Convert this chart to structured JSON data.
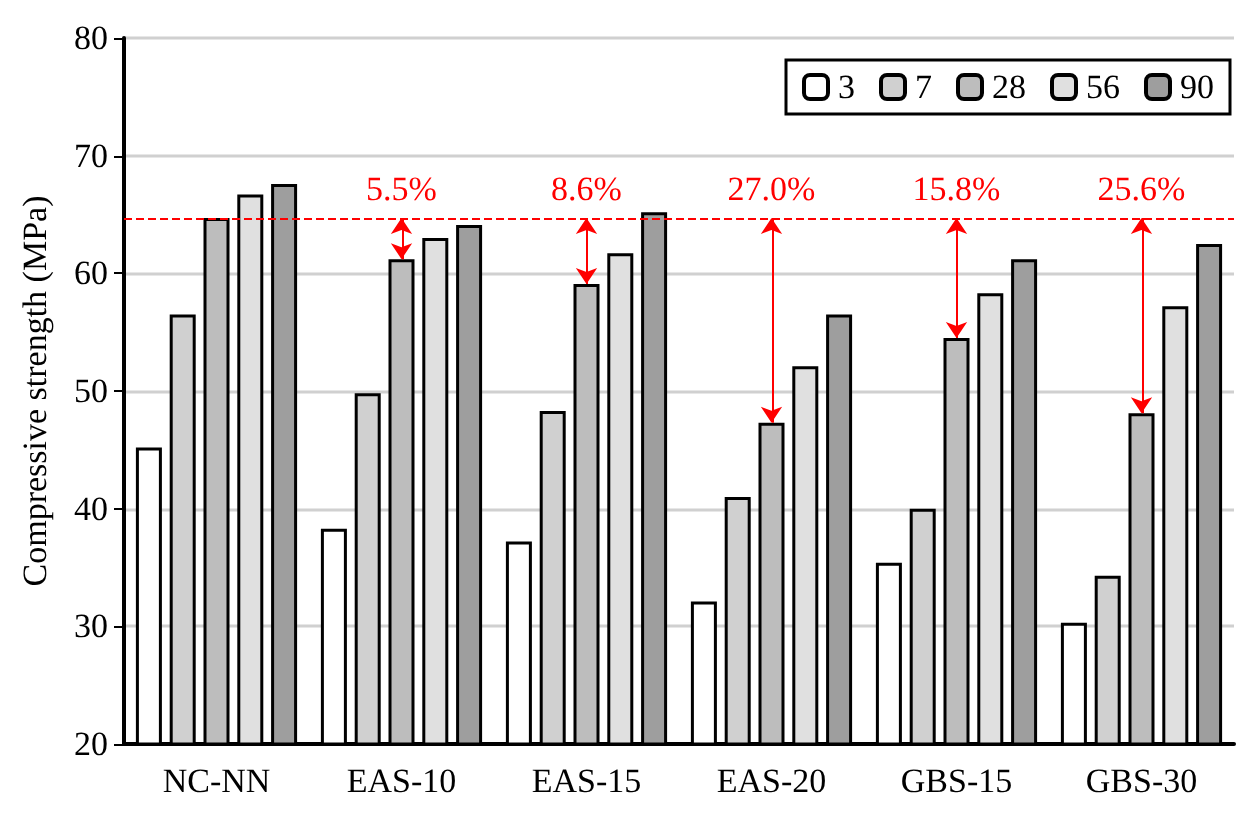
{
  "chart_data": {
    "type": "bar",
    "ylabel": "Compressive strength (MPa)",
    "categories": [
      "NC-NN",
      "EAS-10",
      "EAS-15",
      "EAS-20",
      "GBS-15",
      "GBS-30"
    ],
    "series": [
      {
        "name": "3",
        "color": "#ffffff",
        "values": [
          45.2,
          38.3,
          37.2,
          32.1,
          35.4,
          30.3
        ]
      },
      {
        "name": "7",
        "color": "#d0d0d0",
        "values": [
          56.5,
          49.8,
          48.3,
          41.0,
          40.0,
          34.3
        ]
      },
      {
        "name": "28",
        "color": "#bdbdbd",
        "values": [
          64.7,
          61.2,
          59.1,
          47.3,
          54.5,
          48.1
        ]
      },
      {
        "name": "56",
        "color": "#e0e0e0",
        "values": [
          66.7,
          63.0,
          61.7,
          52.1,
          58.3,
          57.2
        ]
      },
      {
        "name": "90",
        "color": "#9e9e9e",
        "values": [
          67.6,
          64.1,
          65.2,
          56.5,
          61.2,
          62.5
        ]
      }
    ],
    "ylim": [
      20,
      80
    ],
    "yticks": [
      20,
      30,
      40,
      50,
      60,
      70,
      80
    ],
    "grid": "y",
    "legend": "top right",
    "ref_lines": [
      {
        "axis": "y",
        "value": 64.7,
        "label": null,
        "color": "#ff0000",
        "line_style": "dashed"
      }
    ],
    "annotations": [
      {
        "text": "5.5%",
        "x": "EAS-10",
        "y": 64.7
      },
      {
        "text": "8.6%",
        "x": "EAS-15",
        "y": 64.7
      },
      {
        "text": "27.0%",
        "x": "EAS-20",
        "y": 64.7
      },
      {
        "text": "15.8%",
        "x": "GBS-15",
        "y": 64.7
      },
      {
        "text": "25.6%",
        "x": "GBS-30",
        "y": 64.7
      }
    ]
  }
}
